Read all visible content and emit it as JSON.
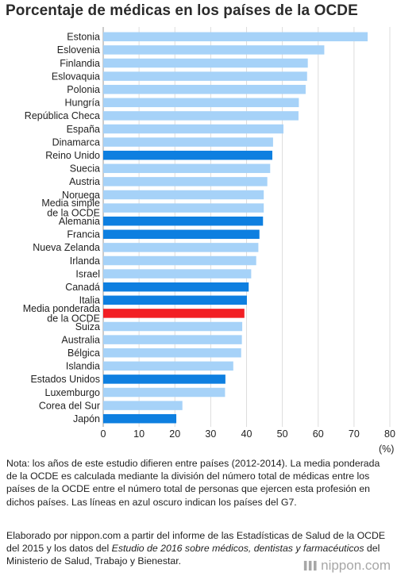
{
  "title": "Porcentaje de médicas en los países de la OCDE",
  "unit": "(%)",
  "note": "Nota: los años de este estudio difieren entre países (2012-2014). La media ponderada de la OCDE es calculada mediante la división del número total de médicas entre los países de la OCDE entre el número total de personas que ejercen esta profesión en dichos países. Las líneas en azul oscuro indican los países del G7.",
  "source": {
    "part1": "Elaborado por nippon.com a partir del informe de las Estadísticas de Salud de la OCDE del 2015 y los datos del ",
    "italic1": "Estudio de 2016 sobre médicos, dentistas y farmacéuticos",
    "part2": " del Ministerio de Salud, Trabajo y Bienestar."
  },
  "logo": {
    "mark": "▌▌▌",
    "text": "nippon.com"
  },
  "colors": {
    "light": "#a6d2f8",
    "g7": "#0e7fe0",
    "weighted": "#f21f24"
  },
  "chart_data": {
    "type": "bar",
    "orientation": "horizontal",
    "title": "Porcentaje de médicas en los países de la OCDE",
    "xlabel": "(%)",
    "xlim": [
      0,
      80
    ],
    "xticks": [
      0,
      10,
      20,
      30,
      40,
      50,
      60,
      70,
      80
    ],
    "grid": true,
    "categories": [
      "Estonia",
      "Eslovenia",
      "Finlandia",
      "Eslovaquia",
      "Polonia",
      "Hungría",
      "República Checa",
      "España",
      "Dinamarca",
      "Reino Unido",
      "Suecia",
      "Austria",
      "Noruega",
      "Media simple de la OCDE",
      "Alemania",
      "Francia",
      "Nueva Zelanda",
      "Irlanda",
      "Israel",
      "Canadá",
      "Italia",
      "Media ponderada de la OCDE",
      "Suiza",
      "Australia",
      "Bélgica",
      "Islandia",
      "Estados Unidos",
      "Luxemburgo",
      "Corea del Sur",
      "Japón"
    ],
    "label_lines": [
      [
        "Estonia"
      ],
      [
        "Eslovenia"
      ],
      [
        "Finlandia"
      ],
      [
        "Eslovaquia"
      ],
      [
        "Polonia"
      ],
      [
        "Hungría"
      ],
      [
        "República Checa"
      ],
      [
        "España"
      ],
      [
        "Dinamarca"
      ],
      [
        "Reino Unido"
      ],
      [
        "Suecia"
      ],
      [
        "Austria"
      ],
      [
        "Noruega"
      ],
      [
        "Media simple",
        "de la OCDE"
      ],
      [
        "Alemania"
      ],
      [
        "Francia"
      ],
      [
        "Nueva Zelanda"
      ],
      [
        "Irlanda"
      ],
      [
        "Israel"
      ],
      [
        "Canadá"
      ],
      [
        "Italia"
      ],
      [
        "Media ponderada",
        "de la OCDE"
      ],
      [
        "Suiza"
      ],
      [
        "Australia"
      ],
      [
        "Bélgica"
      ],
      [
        "Islandia"
      ],
      [
        "Estados Unidos"
      ],
      [
        "Luxemburgo"
      ],
      [
        "Corea del Sur"
      ],
      [
        "Japón"
      ]
    ],
    "values": [
      73.8,
      61.7,
      57.1,
      56.9,
      56.5,
      54.6,
      54.5,
      50.3,
      47.4,
      47.2,
      46.6,
      45.8,
      44.8,
      44.8,
      44.6,
      43.6,
      43.3,
      42.7,
      41.3,
      40.6,
      40.1,
      39.4,
      38.8,
      38.7,
      38.5,
      36.3,
      34.1,
      34.0,
      22.1,
      20.4
    ],
    "groups": [
      "light",
      "light",
      "light",
      "light",
      "light",
      "light",
      "light",
      "light",
      "light",
      "g7",
      "light",
      "light",
      "light",
      "light",
      "g7",
      "g7",
      "light",
      "light",
      "light",
      "g7",
      "g7",
      "weighted",
      "light",
      "light",
      "light",
      "light",
      "g7",
      "light",
      "light",
      "g7"
    ]
  }
}
